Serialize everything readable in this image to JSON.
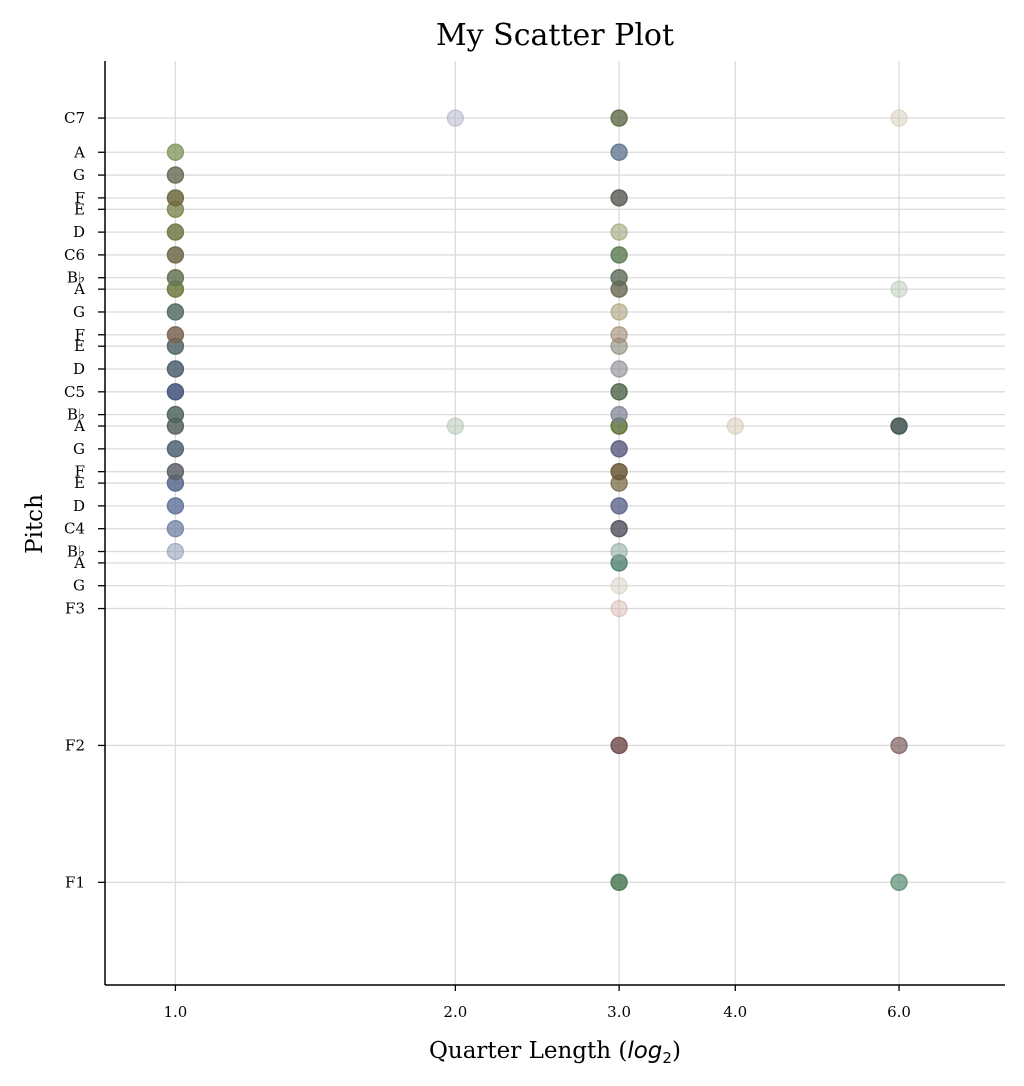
{
  "chart_data": {
    "type": "scatter",
    "title": "My Scatter Plot",
    "xlabel_main": "Quarter Length (",
    "xlabel_math": "log",
    "xlabel_sub": "2",
    "xlabel_close": ")",
    "ylabel": "Pitch",
    "x_scale": "log2",
    "xlim": [
      0.84,
      7.8
    ],
    "ylim": [
      20,
      101
    ],
    "grid": true,
    "x_ticks": [
      {
        "value": 1,
        "label": "1.0"
      },
      {
        "value": 2,
        "label": "2.0"
      },
      {
        "value": 3,
        "label": "3.0"
      },
      {
        "value": 4,
        "label": "4.0"
      },
      {
        "value": 6,
        "label": "6.0"
      }
    ],
    "y_ticks": [
      {
        "midi": 29,
        "label": "F1"
      },
      {
        "midi": 41,
        "label": "F2"
      },
      {
        "midi": 53,
        "label": "F3"
      },
      {
        "midi": 55,
        "label": "G"
      },
      {
        "midi": 57,
        "label": "A"
      },
      {
        "midi": 58,
        "label": "B♭"
      },
      {
        "midi": 60,
        "label": "C4"
      },
      {
        "midi": 62,
        "label": "D"
      },
      {
        "midi": 64,
        "label": "E"
      },
      {
        "midi": 65,
        "label": "F"
      },
      {
        "midi": 67,
        "label": "G"
      },
      {
        "midi": 69,
        "label": "A"
      },
      {
        "midi": 70,
        "label": "B♭"
      },
      {
        "midi": 72,
        "label": "C5"
      },
      {
        "midi": 74,
        "label": "D"
      },
      {
        "midi": 76,
        "label": "E"
      },
      {
        "midi": 77,
        "label": "F"
      },
      {
        "midi": 79,
        "label": "G"
      },
      {
        "midi": 81,
        "label": "A"
      },
      {
        "midi": 82,
        "label": "B♭"
      },
      {
        "midi": 84,
        "label": "C6"
      },
      {
        "midi": 86,
        "label": "D"
      },
      {
        "midi": 88,
        "label": "E"
      },
      {
        "midi": 89,
        "label": "F"
      },
      {
        "midi": 91,
        "label": "G"
      },
      {
        "midi": 93,
        "label": "A"
      },
      {
        "midi": 96,
        "label": "C7"
      }
    ],
    "points": [
      {
        "x": 1,
        "y": 58,
        "color": "#8a9ab5",
        "alpha": 0.55
      },
      {
        "x": 1,
        "y": 60,
        "color": "#6f80a3",
        "alpha": 0.75
      },
      {
        "x": 1,
        "y": 62,
        "color": "#5e6f98",
        "alpha": 0.8
      },
      {
        "x": 1,
        "y": 64,
        "color": "#5a6a8e",
        "alpha": 0.85
      },
      {
        "x": 1,
        "y": 65,
        "color": "#5f6368",
        "alpha": 0.85
      },
      {
        "x": 1,
        "y": 67,
        "color": "#4f6373",
        "alpha": 0.85
      },
      {
        "x": 1,
        "y": 69,
        "color": "#5a6060",
        "alpha": 0.85
      },
      {
        "x": 1,
        "y": 70,
        "color": "#4d6560",
        "alpha": 0.85
      },
      {
        "x": 1,
        "y": 72,
        "color": "#4a5c80",
        "alpha": 0.9
      },
      {
        "x": 1,
        "y": 74,
        "color": "#4f6070",
        "alpha": 0.85
      },
      {
        "x": 1,
        "y": 76,
        "color": "#52666a",
        "alpha": 0.85
      },
      {
        "x": 1,
        "y": 77,
        "color": "#7a6450",
        "alpha": 0.85
      },
      {
        "x": 1,
        "y": 79,
        "color": "#556e66",
        "alpha": 0.85
      },
      {
        "x": 1,
        "y": 81,
        "color": "#6e7a40",
        "alpha": 0.85
      },
      {
        "x": 1,
        "y": 82,
        "color": "#657555",
        "alpha": 0.85
      },
      {
        "x": 1,
        "y": 84,
        "color": "#6b6a48",
        "alpha": 0.85
      },
      {
        "x": 1,
        "y": 86,
        "color": "#707a45",
        "alpha": 0.85
      },
      {
        "x": 1,
        "y": 88,
        "color": "#7a8850",
        "alpha": 0.8
      },
      {
        "x": 1,
        "y": 89,
        "color": "#6e6a40",
        "alpha": 0.85
      },
      {
        "x": 1,
        "y": 91,
        "color": "#666850",
        "alpha": 0.8
      },
      {
        "x": 1,
        "y": 93,
        "color": "#80925a",
        "alpha": 0.75
      },
      {
        "x": 2,
        "y": 69,
        "color": "#a8bda8",
        "alpha": 0.45
      },
      {
        "x": 2,
        "y": 96,
        "color": "#a8a8c4",
        "alpha": 0.45
      },
      {
        "x": 3,
        "y": 29,
        "color": "#4d7a56",
        "alpha": 0.85
      },
      {
        "x": 3,
        "y": 41,
        "color": "#6e4848",
        "alpha": 0.8
      },
      {
        "x": 3,
        "y": 53,
        "color": "#d4b0aa",
        "alpha": 0.45
      },
      {
        "x": 3,
        "y": 55,
        "color": "#cfcab8",
        "alpha": 0.45
      },
      {
        "x": 3,
        "y": 57,
        "color": "#4d8070",
        "alpha": 0.8
      },
      {
        "x": 3,
        "y": 58,
        "color": "#8aa8a0",
        "alpha": 0.55
      },
      {
        "x": 3,
        "y": 60,
        "color": "#50505e",
        "alpha": 0.8
      },
      {
        "x": 3,
        "y": 62,
        "color": "#5c6488",
        "alpha": 0.8
      },
      {
        "x": 3,
        "y": 64,
        "color": "#7a6e48",
        "alpha": 0.75
      },
      {
        "x": 3,
        "y": 65,
        "color": "#6b5a38",
        "alpha": 0.85
      },
      {
        "x": 3,
        "y": 67,
        "color": "#5a5a7e",
        "alpha": 0.8
      },
      {
        "x": 3,
        "y": 69,
        "color": "#5a6e30",
        "alpha": 0.8
      },
      {
        "x": 3,
        "y": 70,
        "color": "#7a8090",
        "alpha": 0.7
      },
      {
        "x": 3,
        "y": 72,
        "color": "#4f6448",
        "alpha": 0.8
      },
      {
        "x": 3,
        "y": 74,
        "color": "#888890",
        "alpha": 0.6
      },
      {
        "x": 3,
        "y": 76,
        "color": "#888878",
        "alpha": 0.6
      },
      {
        "x": 3,
        "y": 77,
        "color": "#a08870",
        "alpha": 0.6
      },
      {
        "x": 3,
        "y": 79,
        "color": "#a8a07a",
        "alpha": 0.6
      },
      {
        "x": 3,
        "y": 81,
        "color": "#6b6650",
        "alpha": 0.8
      },
      {
        "x": 3,
        "y": 82,
        "color": "#5d6a58",
        "alpha": 0.8
      },
      {
        "x": 3,
        "y": 84,
        "color": "#5a7a50",
        "alpha": 0.8
      },
      {
        "x": 3,
        "y": 86,
        "color": "#9ea478",
        "alpha": 0.6
      },
      {
        "x": 3,
        "y": 89,
        "color": "#555a50",
        "alpha": 0.8
      },
      {
        "x": 3,
        "y": 93,
        "color": "#5a7288",
        "alpha": 0.75
      },
      {
        "x": 3,
        "y": 96,
        "color": "#5c6a48",
        "alpha": 0.8
      },
      {
        "x": 4,
        "y": 69,
        "color": "#cfc2a8",
        "alpha": 0.45
      },
      {
        "x": 6,
        "y": 29,
        "color": "#5a8a70",
        "alpha": 0.7
      },
      {
        "x": 6,
        "y": 41,
        "color": "#7a6060",
        "alpha": 0.7
      },
      {
        "x": 6,
        "y": 69,
        "color": "#3e5250",
        "alpha": 0.85
      },
      {
        "x": 6,
        "y": 81,
        "color": "#b0c4b0",
        "alpha": 0.45
      },
      {
        "x": 6,
        "y": 96,
        "color": "#d0c8b0",
        "alpha": 0.45
      }
    ]
  }
}
